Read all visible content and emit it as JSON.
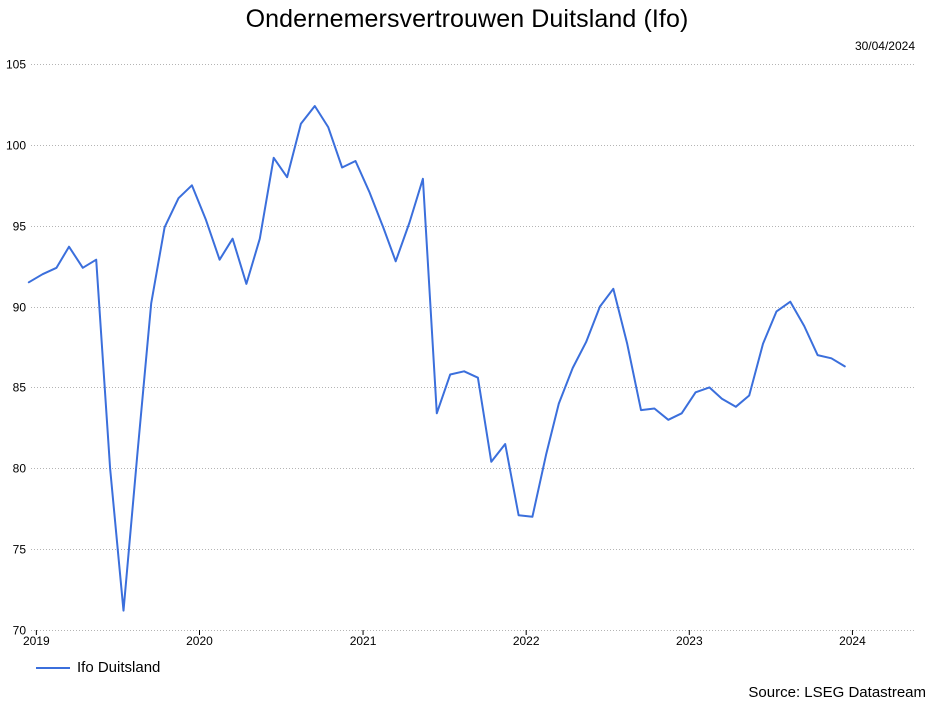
{
  "title": "Ondernemersvertrouwen Duitsland (Ifo)",
  "date_label": "30/04/2024",
  "source": "Source: LSEG Datastream",
  "colors": {
    "series": "#3b6fdc",
    "grid": "#b4b4b4",
    "axis": "#000000"
  },
  "chart_data": {
    "type": "line",
    "title": "Ondernemersvertrouwen Duitsland (Ifo)",
    "xlabel": "",
    "ylabel": "",
    "ylim": [
      70,
      105
    ],
    "yticks": [
      70,
      75,
      80,
      85,
      90,
      95,
      100,
      105
    ],
    "xlim": [
      "2018-12-20",
      "2024-05-20"
    ],
    "xtick_labels": [
      {
        "date": "2019-01-01",
        "label": "2019"
      },
      {
        "date": "2020-01-01",
        "label": "2020"
      },
      {
        "date": "2021-01-01",
        "label": "2021"
      },
      {
        "date": "2022-01-01",
        "label": "2022"
      },
      {
        "date": "2023-01-01",
        "label": "2023"
      },
      {
        "date": "2024-01-01",
        "label": "2024"
      }
    ],
    "grid": true,
    "legend_position": "bottom-left",
    "series": [
      {
        "name": "Ifo Duitsland",
        "x": [
          "2018-12",
          "2019-01",
          "2019-02",
          "2019-03",
          "2019-04",
          "2019-05",
          "2019-06",
          "2019-07",
          "2019-08",
          "2019-09",
          "2019-10",
          "2019-11",
          "2019-12",
          "2020-01",
          "2020-02",
          "2020-03",
          "2020-04",
          "2020-05",
          "2020-06",
          "2020-07",
          "2020-08",
          "2020-09",
          "2020-10",
          "2020-11",
          "2020-12",
          "2021-01",
          "2021-02",
          "2021-03",
          "2021-04",
          "2021-05",
          "2021-06",
          "2021-07",
          "2021-08",
          "2021-09",
          "2021-10",
          "2021-11",
          "2021-12",
          "2022-01",
          "2022-02",
          "2022-03",
          "2022-04",
          "2022-05",
          "2022-06",
          "2022-07",
          "2022-08",
          "2022-09",
          "2022-10",
          "2022-11",
          "2022-12",
          "2023-01",
          "2023-02",
          "2023-03",
          "2023-04",
          "2023-05",
          "2023-06",
          "2023-07",
          "2023-08",
          "2023-09",
          "2023-10",
          "2023-11",
          "2023-12",
          "2024-01",
          "2024-02"
        ],
        "values": [
          91.5,
          92.0,
          92.4,
          93.7,
          92.4,
          92.9,
          80.0,
          71.2,
          80.9,
          90.2,
          94.9,
          96.7,
          97.5,
          95.4,
          92.9,
          94.2,
          91.4,
          94.2,
          99.2,
          98.0,
          101.3,
          102.4,
          101.1,
          98.6,
          99.0,
          97.1,
          94.9,
          92.8,
          95.2,
          97.9,
          83.4,
          85.8,
          86.0,
          85.6,
          80.4,
          81.5,
          77.1,
          77.0,
          80.9,
          84.0,
          86.2,
          87.8,
          90.0,
          91.1,
          87.7,
          83.6,
          83.7,
          83.0,
          83.4,
          84.7,
          85.0,
          84.3,
          83.8,
          84.5,
          87.7,
          89.7,
          90.3,
          88.8,
          87.0,
          86.8,
          86.3,
          null,
          null
        ]
      }
    ]
  }
}
